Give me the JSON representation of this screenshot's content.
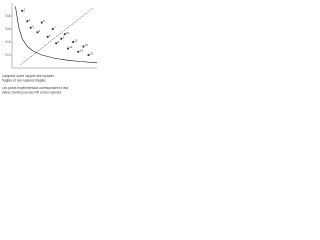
{
  "chart_data": {
    "type": "scatter",
    "x": [
      0.12,
      0.18,
      0.22,
      0.3,
      0.35,
      0.42,
      0.48,
      0.52,
      0.58,
      0.62,
      0.66,
      0.72,
      0.78,
      0.84,
      0.9
    ],
    "values": [
      0.88,
      0.72,
      0.62,
      0.55,
      0.7,
      0.48,
      0.6,
      0.38,
      0.45,
      0.52,
      0.3,
      0.4,
      0.25,
      0.33,
      0.2
    ],
    "labels": [
      "1",
      "2",
      "3",
      "4",
      "5",
      "6",
      "7",
      "8",
      "9",
      "10",
      "11",
      "12",
      "13",
      "14",
      "15"
    ],
    "color": "#222",
    "curve": {
      "x": [
        0.04,
        0.08,
        0.12,
        0.18,
        0.25,
        0.35,
        0.5,
        0.65,
        0.8,
        1.0
      ],
      "values": [
        0.95,
        0.62,
        0.45,
        0.33,
        0.26,
        0.2,
        0.15,
        0.12,
        0.1,
        0.08
      ],
      "color": "#111"
    },
    "diagonal": {
      "x": [
        0.1,
        0.95
      ],
      "values": [
        0.05,
        0.92
      ],
      "color": "#666"
    },
    "xlim": [
      0,
      1
    ],
    "ylim": [
      0,
      1
    ],
    "yticks": [
      0.2,
      0.4,
      0.6,
      0.8
    ],
    "caption": [
      "Longueur ouvre rapport des ruptures",
      "fragiles et non ruptures fragiles",
      "Les points expérimentaux correspondent à leur",
      "valeur d'arrêt pour des PR et des ruptures"
    ]
  }
}
